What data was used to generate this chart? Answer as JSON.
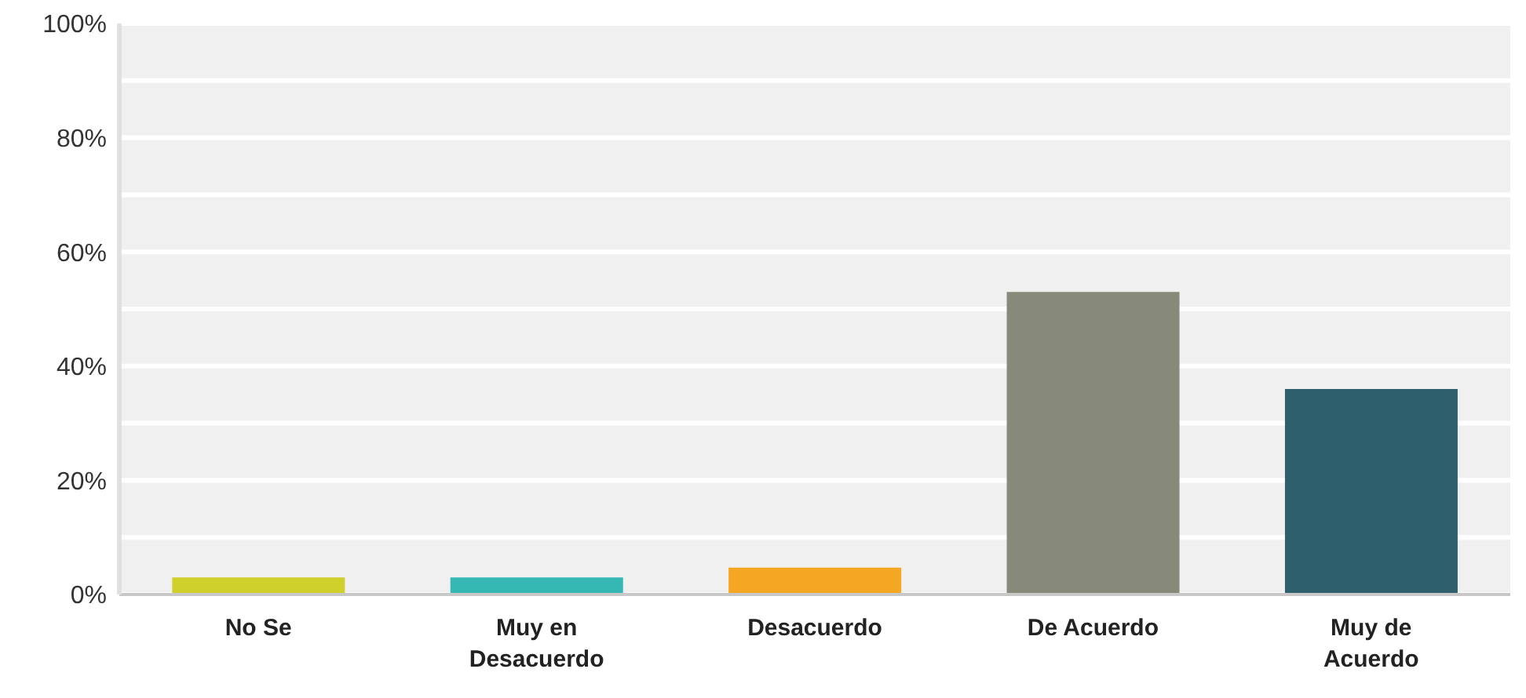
{
  "chart_data": {
    "type": "bar",
    "categories": [
      "No Se",
      "Muy en Desacuerdo",
      "Desacuerdo",
      "De Acuerdo",
      "Muy de Acuerdo"
    ],
    "values": [
      3,
      3,
      4.7,
      53,
      36
    ],
    "colors": [
      "#cfd12a",
      "#35b8b4",
      "#f5a623",
      "#878a79",
      "#2e5f6d"
    ],
    "ylim": [
      0,
      100
    ],
    "yticks": [
      {
        "value": 0,
        "label": "0%"
      },
      {
        "value": 10,
        "label": null
      },
      {
        "value": 20,
        "label": "20%"
      },
      {
        "value": 30,
        "label": null
      },
      {
        "value": 40,
        "label": "40%"
      },
      {
        "value": 50,
        "label": null
      },
      {
        "value": 60,
        "label": "60%"
      },
      {
        "value": 70,
        "label": null
      },
      {
        "value": 80,
        "label": "80%"
      },
      {
        "value": 90,
        "label": null
      },
      {
        "value": 100,
        "label": "100%"
      }
    ],
    "grid": "y"
  }
}
